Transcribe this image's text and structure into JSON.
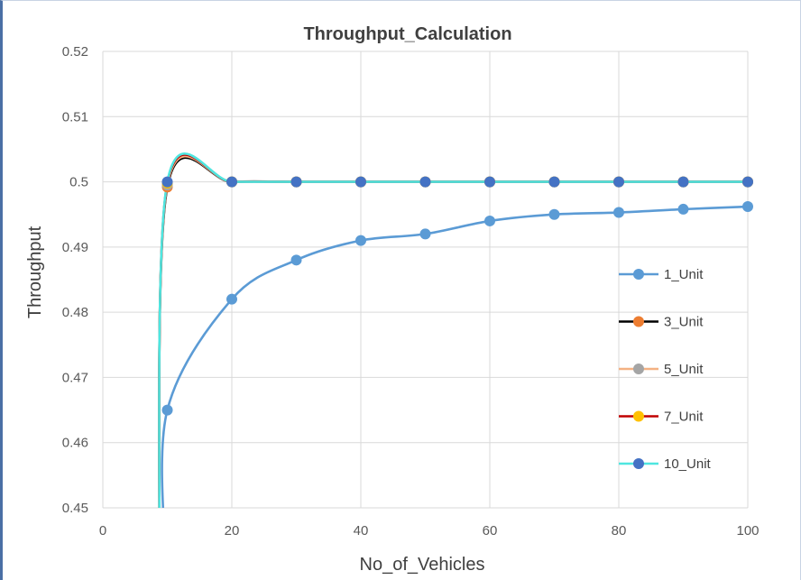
{
  "chart_data": {
    "type": "line",
    "title": "Throughput_Calculation",
    "xlabel": "No_of_Vehicles",
    "ylabel": "Throughput",
    "xlim": [
      0,
      100
    ],
    "ylim": [
      0.45,
      0.52
    ],
    "xticks": [
      0,
      20,
      40,
      60,
      80,
      100
    ],
    "yticks": [
      0.45,
      0.46,
      0.47,
      0.48,
      0.49,
      0.5,
      0.51,
      0.52
    ],
    "ytick_labels": [
      "0.45",
      "0.46",
      "0.47",
      "0.48",
      "0.49",
      "0.5",
      "0.51",
      "0.52"
    ],
    "grid": true,
    "legend_position": "right",
    "series": [
      {
        "name": "1_Unit",
        "line_color": "#5b9bd5",
        "marker_color": "#5b9bd5",
        "x": [
          10,
          20,
          30,
          40,
          50,
          60,
          70,
          80,
          90,
          100
        ],
        "y": [
          0.465,
          0.482,
          0.488,
          0.491,
          0.492,
          0.494,
          0.495,
          0.4953,
          0.4958,
          0.4962
        ]
      },
      {
        "name": "3_Unit",
        "line_color": "#000000",
        "marker_color": "#ed7d31",
        "x": [
          10,
          20,
          30,
          40,
          50,
          60,
          70,
          80,
          90,
          100
        ],
        "y": [
          0.4992,
          0.5,
          0.5,
          0.5,
          0.5,
          0.5,
          0.5,
          0.5,
          0.5,
          0.5
        ]
      },
      {
        "name": "5_Unit",
        "line_color": "#f4b183",
        "marker_color": "#a5a5a5",
        "x": [
          10,
          20,
          30,
          40,
          50,
          60,
          70,
          80,
          90,
          100
        ],
        "y": [
          0.4995,
          0.5,
          0.5,
          0.5,
          0.5,
          0.5,
          0.5,
          0.5,
          0.5,
          0.5
        ]
      },
      {
        "name": "7_Unit",
        "line_color": "#c00000",
        "marker_color": "#ffc000",
        "x": [
          10,
          20,
          30,
          40,
          50,
          60,
          70,
          80,
          90,
          100
        ],
        "y": [
          0.4998,
          0.5,
          0.5,
          0.5,
          0.5,
          0.5,
          0.5,
          0.5,
          0.5,
          0.5
        ]
      },
      {
        "name": "10_Unit",
        "line_color": "#4ee6e0",
        "marker_color": "#4472c4",
        "x": [
          10,
          20,
          30,
          40,
          50,
          60,
          70,
          80,
          90,
          100
        ],
        "y": [
          0.5,
          0.5,
          0.5,
          0.5,
          0.5,
          0.5,
          0.5,
          0.5,
          0.5,
          0.5
        ]
      }
    ]
  }
}
